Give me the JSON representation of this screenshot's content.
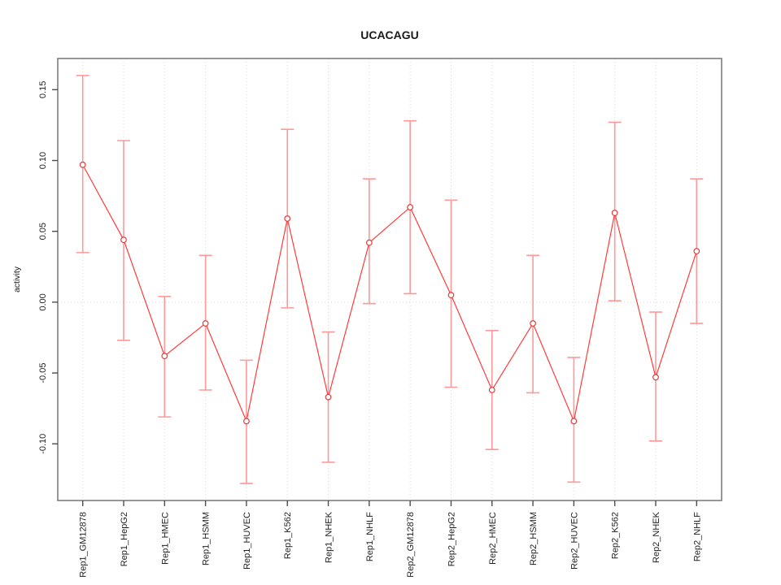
{
  "chart_data": {
    "type": "line",
    "title": "UCACAGU",
    "xlabel": "",
    "ylabel": "activity",
    "categories": [
      "Rep1_GM12878",
      "Rep1_HepG2",
      "Rep1_HMEC",
      "Rep1_HSMM",
      "Rep1_HUVEC",
      "Rep1_K562",
      "Rep1_NHEK",
      "Rep1_NHLF",
      "Rep2_GM12878",
      "Rep2_HepG2",
      "Rep2_HMEC",
      "Rep2_HSMM",
      "Rep2_HUVEC",
      "Rep2_K562",
      "Rep2_NHEK",
      "Rep2_NHLF"
    ],
    "series": [
      {
        "name": "activity",
        "marker": "open-circle",
        "values": [
          0.097,
          0.044,
          -0.038,
          -0.015,
          -0.084,
          0.059,
          -0.067,
          0.042,
          0.067,
          0.005,
          -0.062,
          -0.015,
          -0.084,
          0.063,
          -0.053,
          0.036
        ],
        "error_low": [
          0.035,
          -0.027,
          -0.081,
          -0.062,
          -0.128,
          -0.004,
          -0.113,
          -0.001,
          0.006,
          -0.06,
          -0.104,
          -0.064,
          -0.127,
          0.001,
          -0.098,
          -0.015
        ],
        "error_high": [
          0.16,
          0.114,
          0.004,
          0.033,
          -0.041,
          0.122,
          -0.021,
          0.087,
          0.128,
          0.072,
          -0.02,
          0.033,
          -0.039,
          0.127,
          -0.007,
          0.087
        ]
      }
    ],
    "yticks": [
      -0.1,
      -0.05,
      0.0,
      0.05,
      0.1,
      0.15
    ],
    "ytick_labels": [
      "-0.10",
      "-0.05",
      "0.00",
      "0.05",
      "0.10",
      "0.15"
    ],
    "ylim": [
      -0.14,
      0.172
    ],
    "grid": {
      "vertical_dotted_per_category": true,
      "horizontal_dotted_at_zero": true
    },
    "legend": null,
    "colors": {
      "line": "#ff3b3b",
      "point_stroke": "#e23b3b",
      "point_fill": "#ffffff",
      "error_bar": "#ff9898",
      "grid": "#d8d8d8",
      "zero_line": "#d8d8d8",
      "border": "#7f7f7f",
      "tick": "#4d4d4d",
      "text": "#1a1a1a",
      "background": "#ffffff"
    }
  }
}
